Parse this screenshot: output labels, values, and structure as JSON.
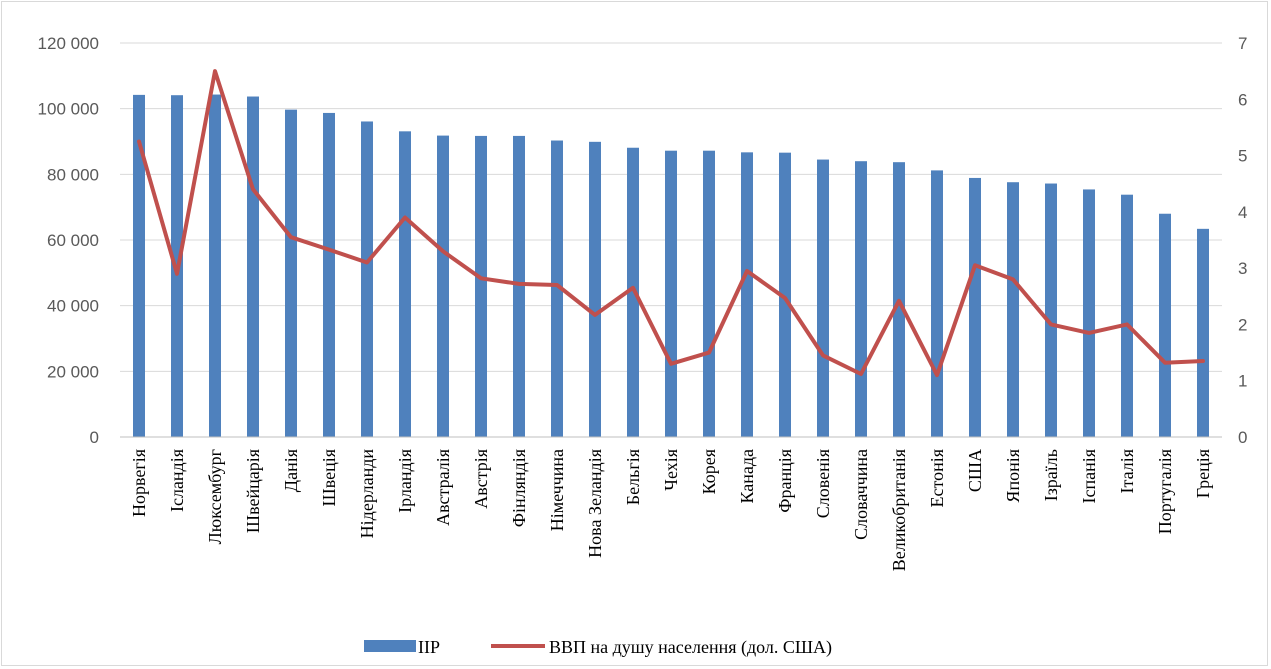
{
  "chart_data": {
    "type": "bar",
    "categories": [
      "Норвегія",
      "Ісландія",
      "Люксембург",
      "Швейцарія",
      "Данія",
      "Швеція",
      "Нідерланди",
      "Ірландія",
      "Австралія",
      "Австрія",
      "Фінляндія",
      "Німеччина",
      "Нова Зеландія",
      "Бельгія",
      "Чехія",
      "Корея",
      "Канада",
      "Франція",
      "Словенія",
      "Словаччина",
      "Великобританія",
      "Естонія",
      "США",
      "Японія",
      "Ізраїль",
      "Іспанія",
      "Італія",
      "Португалія",
      "Греція"
    ],
    "series": [
      {
        "name": "ІІР",
        "type": "bar",
        "axis": "left",
        "color": "#4F81BD",
        "values": [
          104200,
          104100,
          104300,
          103700,
          99700,
          98700,
          96100,
          93100,
          91800,
          91700,
          91700,
          90300,
          89900,
          88100,
          87200,
          87200,
          86700,
          86600,
          84500,
          84000,
          83700,
          81200,
          78900,
          77600,
          77200,
          75400,
          73800,
          68000,
          63400
        ]
      },
      {
        "name": "ВВП на душу населення (дол. США)",
        "type": "line",
        "axis": "right",
        "color": "#C0504D",
        "values": [
          5.25,
          2.9,
          6.5,
          4.4,
          3.55,
          3.33,
          3.1,
          3.9,
          3.3,
          2.82,
          2.72,
          2.7,
          2.17,
          2.65,
          1.3,
          1.5,
          2.95,
          2.47,
          1.45,
          1.12,
          2.42,
          1.1,
          3.05,
          2.8,
          2.0,
          1.85,
          2.0,
          1.32,
          1.35
        ]
      }
    ],
    "y_left": {
      "ylim": [
        0,
        120000
      ],
      "ticks": [
        "0",
        "20 000",
        "40 000",
        "60 000",
        "80 000",
        "100 000",
        "120 000"
      ]
    },
    "y_right": {
      "ylim": [
        0,
        7
      ],
      "ticks": [
        "0",
        "1",
        "2",
        "3",
        "4",
        "5",
        "6",
        "7"
      ]
    },
    "grid": true,
    "legend_position": "bottom"
  }
}
